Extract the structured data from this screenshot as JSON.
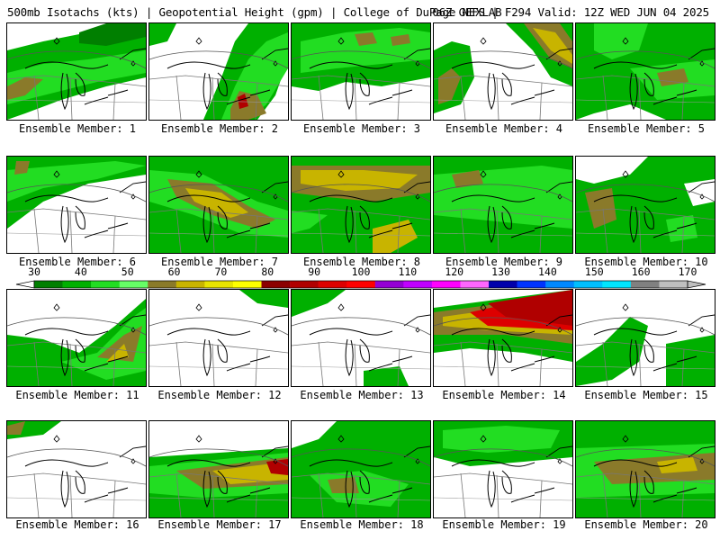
{
  "header": {
    "title_left": "500mb Isotachs (kts) | Geopotential Height (gpm) | College of DuPage NEXLAB",
    "title_right": "06Z GEFS | F294 Valid: 12Z WED JUN 04 2025"
  },
  "colorbar": {
    "labels": [
      "30",
      "40",
      "50",
      "60",
      "70",
      "80",
      "90",
      "100",
      "110",
      "120",
      "130",
      "140",
      "150",
      "160",
      "170"
    ],
    "colors": [
      "#007f00",
      "#00b000",
      "#22dd22",
      "#66ff66",
      "#8a7a2a",
      "#c8b400",
      "#e8e400",
      "#ffff00",
      "#8b0000",
      "#b00000",
      "#dd0000",
      "#ff0000",
      "#9400d3",
      "#c000ff",
      "#ff00ff",
      "#ff66ff",
      "#0000aa",
      "#0033ff",
      "#0088ff",
      "#00bfff",
      "#00e5ff",
      "#808080",
      "#bfbfbf"
    ]
  },
  "members": [
    {
      "label": "Ensemble Member: 1"
    },
    {
      "label": "Ensemble Member: 2"
    },
    {
      "label": "Ensemble Member: 3"
    },
    {
      "label": "Ensemble Member: 4"
    },
    {
      "label": "Ensemble Member: 5"
    },
    {
      "label": "Ensemble Member: 6"
    },
    {
      "label": "Ensemble Member: 7"
    },
    {
      "label": "Ensemble Member: 8"
    },
    {
      "label": "Ensemble Member: 9"
    },
    {
      "label": "Ensemble Member: 10"
    },
    {
      "label": "Ensemble Member: 11"
    },
    {
      "label": "Ensemble Member: 12"
    },
    {
      "label": "Ensemble Member: 13"
    },
    {
      "label": "Ensemble Member: 14"
    },
    {
      "label": "Ensemble Member: 15"
    },
    {
      "label": "Ensemble Member: 16"
    },
    {
      "label": "Ensemble Member: 17"
    },
    {
      "label": "Ensemble Member: 18"
    },
    {
      "label": "Ensemble Member: 19"
    },
    {
      "label": "Ensemble Member: 20"
    }
  ]
}
